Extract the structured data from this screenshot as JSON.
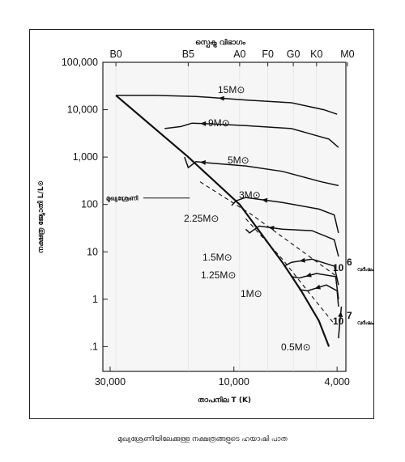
{
  "caption": "മുഖ്യശ്രേണിയിലേക്കുള്ള നക്ഷത്രങ്ങളുടെ ഹയാഷി പാത",
  "chart_data": {
    "type": "line",
    "title": "",
    "top_axis_label": "സ്പെക്ട്ര വിഭാഗം",
    "xlabel": "താപനില T (K)",
    "ylabel": "നക്ഷത്ര ജ്യോതി L/L⊙",
    "x_scale": "log",
    "x_reversed": true,
    "xlim": [
      32000,
      3700
    ],
    "y_scale": "log",
    "ylim": [
      0.03,
      100000
    ],
    "x_tick_labels": [
      "30,000",
      "10,000",
      "4,000"
    ],
    "x_ticks": [
      30000,
      10000,
      4000
    ],
    "y_tick_labels": [
      "100,000",
      "10,000",
      "1,000",
      "100",
      "10",
      "1",
      ".1"
    ],
    "y_ticks": [
      100000,
      10000,
      1000,
      100,
      10,
      1,
      0.1
    ],
    "spectral_classes": [
      {
        "label": "B0",
        "temp": 28500
      },
      {
        "label": "B5",
        "temp": 15000
      },
      {
        "label": "A0",
        "temp": 9500
      },
      {
        "label": "F0",
        "temp": 7400
      },
      {
        "label": "G0",
        "temp": 5900
      },
      {
        "label": "K0",
        "temp": 4800
      },
      {
        "label": "M0",
        "temp": 3650
      }
    ],
    "main_sequence_label": "മുഖ്യശ്രേണി",
    "main_sequence": [
      [
        28500,
        20000
      ],
      [
        15000,
        1000
      ],
      [
        9500,
        100
      ],
      [
        6500,
        6
      ],
      [
        5500,
        1.5
      ],
      [
        4700,
        0.35
      ],
      [
        4300,
        0.1
      ]
    ],
    "isochrones": [
      {
        "label_exponent": "6",
        "label_suffix": "വർഷം",
        "points": [
          [
            13500,
            300
          ],
          [
            8500,
            60
          ],
          [
            6000,
            15
          ],
          [
            4000,
            3
          ]
        ]
      },
      {
        "label_exponent": "7",
        "label_suffix": "വർഷം",
        "points": [
          [
            9000,
            50
          ],
          [
            6500,
            7
          ],
          [
            5200,
            1.5
          ],
          [
            4100,
            0.3
          ]
        ]
      }
    ],
    "series": [
      {
        "name": "15M⊙",
        "points": [
          [
            4000,
            8000
          ],
          [
            4500,
            10000
          ],
          [
            6000,
            14000
          ],
          [
            9000,
            16000
          ],
          [
            14000,
            19000
          ],
          [
            20000,
            20000
          ],
          [
            28500,
            20000
          ]
        ]
      },
      {
        "name": "9M⊙",
        "points": [
          [
            3950,
            1600
          ],
          [
            4300,
            2400
          ],
          [
            6000,
            4000
          ],
          [
            9000,
            4600
          ],
          [
            12000,
            5000
          ],
          [
            14500,
            5200
          ],
          [
            16000,
            4400
          ],
          [
            18500,
            4000
          ]
        ]
      },
      {
        "name": "5M⊙",
        "points": [
          [
            3950,
            250
          ],
          [
            4600,
            300
          ],
          [
            6500,
            500
          ],
          [
            9000,
            650
          ],
          [
            12500,
            750
          ],
          [
            14000,
            800
          ],
          [
            15000,
            600
          ],
          [
            15500,
            1000
          ]
        ]
      },
      {
        "name": "3M⊙",
        "points": [
          [
            3950,
            25
          ],
          [
            4100,
            60
          ],
          [
            4700,
            80
          ],
          [
            6500,
            110
          ],
          [
            9000,
            140
          ],
          [
            9800,
            120
          ],
          [
            10200,
            95
          ]
        ]
      },
      {
        "name": "2.25M⊙",
        "points": [
          [
            3950,
            8
          ],
          [
            4100,
            18
          ],
          [
            5000,
            28
          ],
          [
            6500,
            30
          ],
          [
            8000,
            35
          ],
          [
            8700,
            25
          ],
          [
            9000,
            30
          ]
        ]
      },
      {
        "name": "1.5M⊙",
        "points": [
          [
            3950,
            2
          ],
          [
            4100,
            5
          ],
          [
            5000,
            7
          ],
          [
            6000,
            6
          ],
          [
            6400,
            5
          ]
        ]
      },
      {
        "name": "1.25M⊙",
        "points": [
          [
            3950,
            1
          ],
          [
            4050,
            3
          ],
          [
            4800,
            3.5
          ],
          [
            5600,
            2.8
          ],
          [
            6000,
            3
          ]
        ]
      },
      {
        "name": "1M⊙",
        "points": [
          [
            3950,
            0.7
          ],
          [
            4000,
            1.5
          ],
          [
            4400,
            2
          ],
          [
            5200,
            1.5
          ],
          [
            5600,
            1.6
          ]
        ]
      },
      {
        "name": "0.5M⊙",
        "points": [
          [
            3950,
            0.15
          ],
          [
            3900,
            0.35
          ],
          [
            3850,
            0.7
          ]
        ]
      }
    ]
  }
}
